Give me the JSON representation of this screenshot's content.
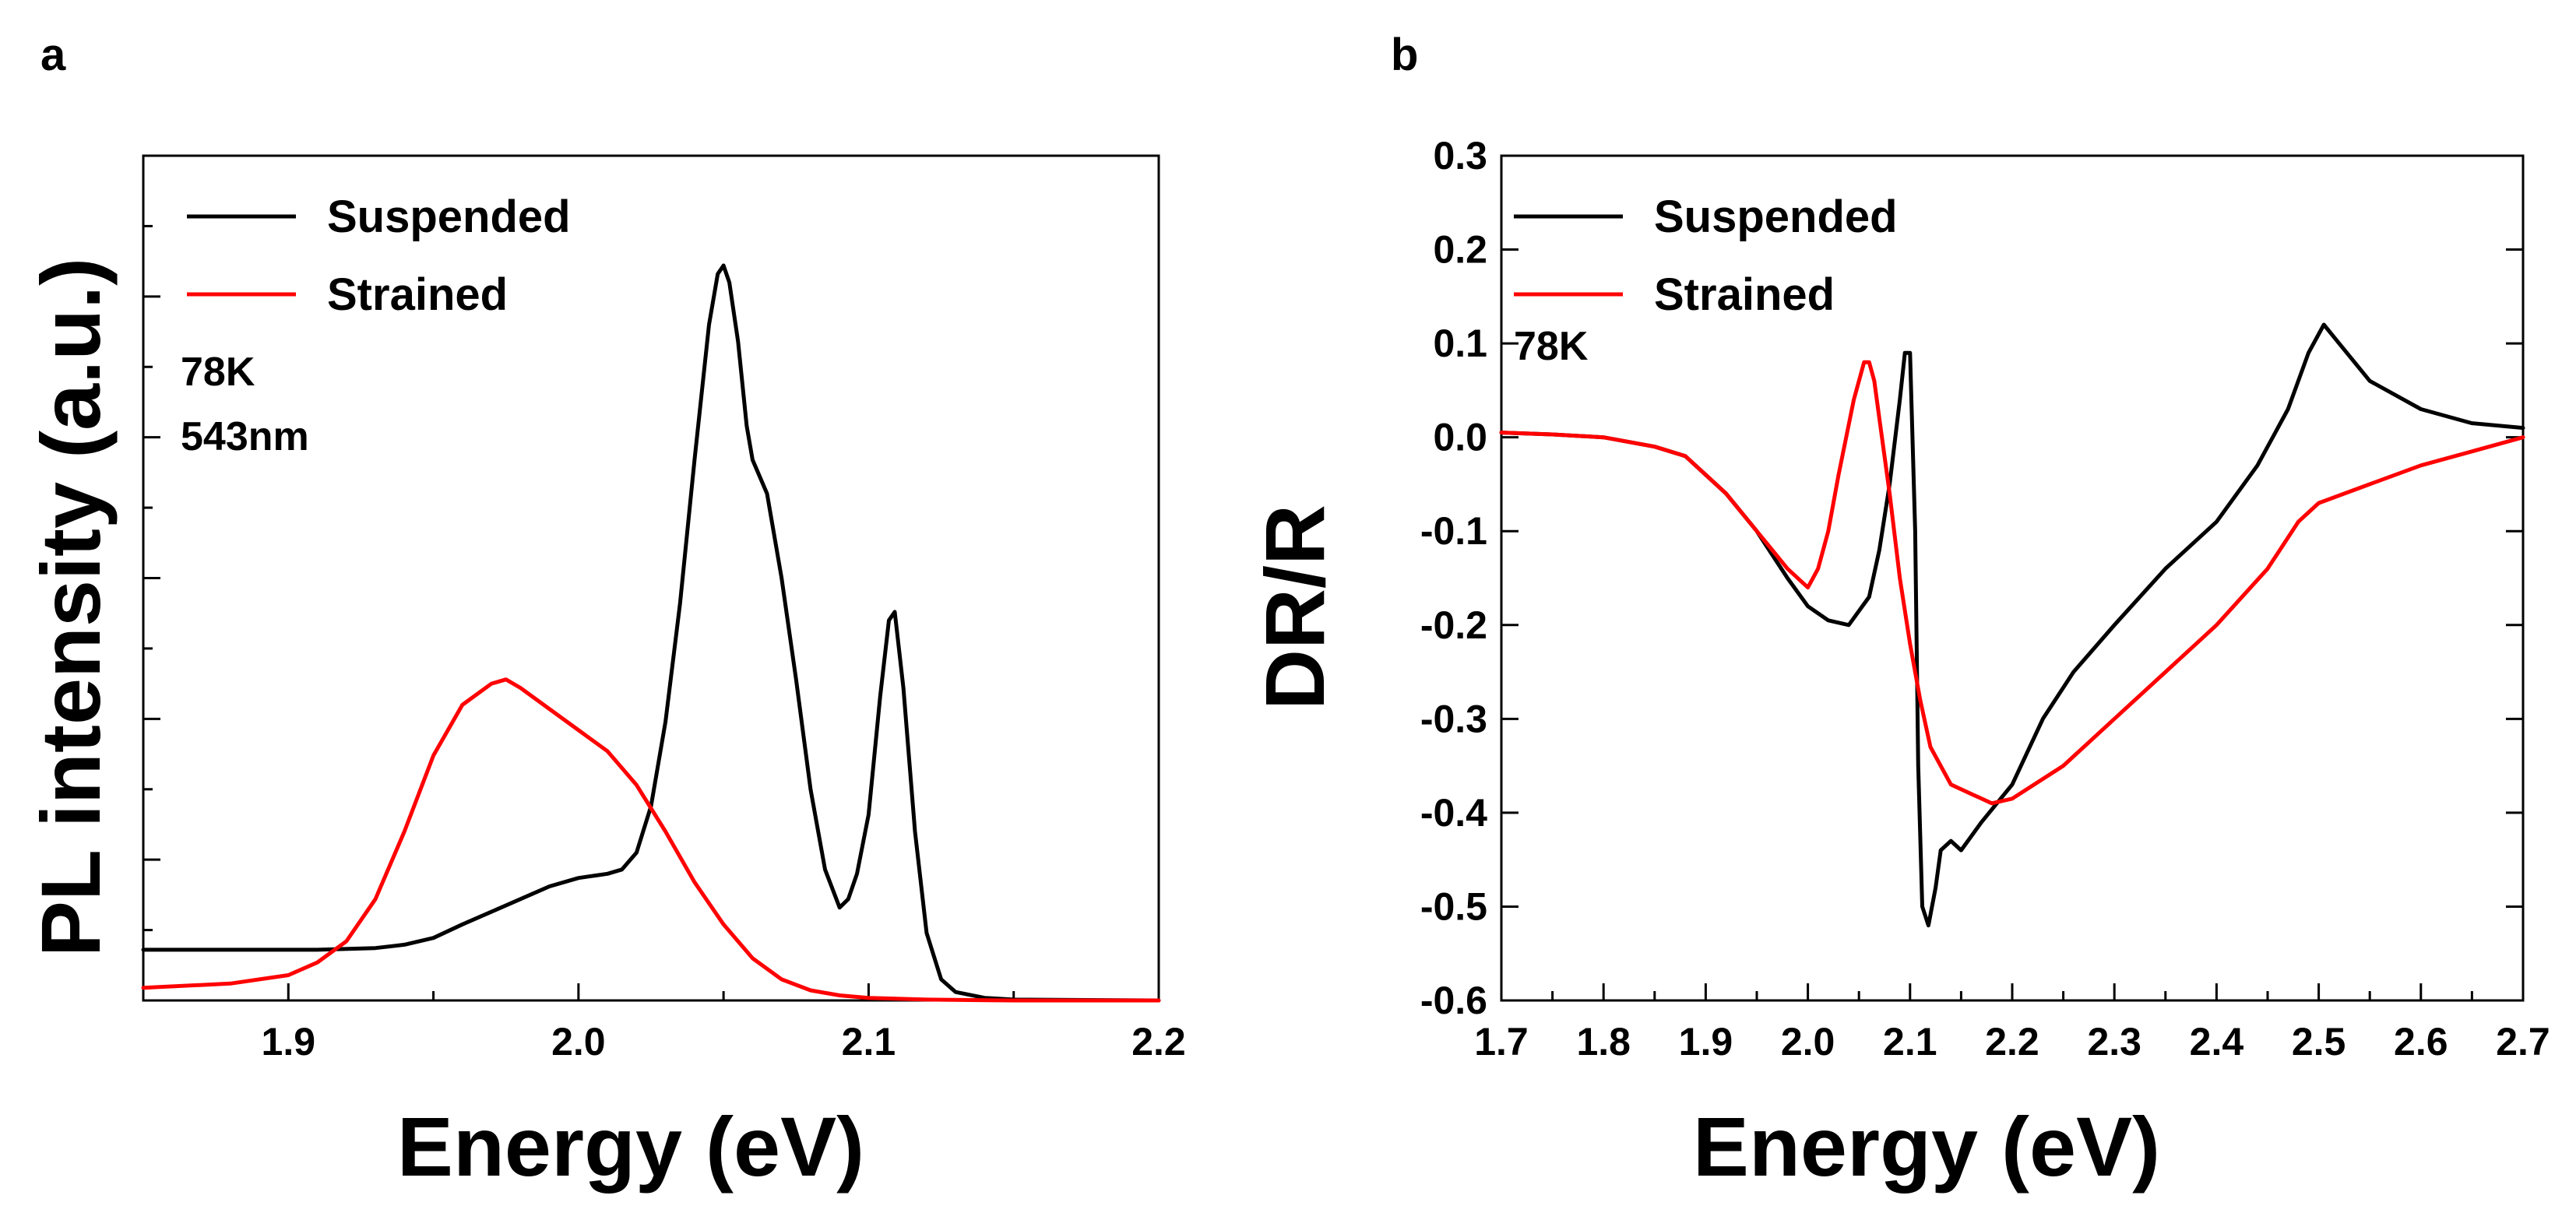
{
  "chart_data": [
    {
      "panel_label": "a",
      "type": "line",
      "title": "",
      "xlabel": "Energy (eV)",
      "ylabel": "PL intensity (a.u.)",
      "xlim": [
        1.85,
        2.2
      ],
      "ylim": [
        0,
        1.0
      ],
      "x_ticks": [
        1.9,
        2.0,
        2.1,
        2.2
      ],
      "x_tick_labels": [
        "1.9",
        "2.0",
        "2.1",
        "2.2"
      ],
      "y_tick_labels_shown": false,
      "legend": {
        "position": "top-left",
        "entries": [
          "Suspended",
          "Strained"
        ]
      },
      "annotations": [
        "78K",
        "543nm"
      ],
      "series": [
        {
          "name": "Suspended",
          "color": "#000000",
          "x": [
            1.85,
            1.88,
            1.91,
            1.93,
            1.94,
            1.95,
            1.96,
            1.97,
            1.98,
            1.99,
            2.0,
            2.01,
            2.015,
            2.02,
            2.025,
            2.03,
            2.035,
            2.04,
            2.045,
            2.048,
            2.05,
            2.052,
            2.055,
            2.058,
            2.06,
            2.065,
            2.07,
            2.075,
            2.08,
            2.085,
            2.09,
            2.093,
            2.096,
            2.1,
            2.104,
            2.107,
            2.109,
            2.112,
            2.116,
            2.12,
            2.125,
            2.13,
            2.14,
            2.15,
            2.2
          ],
          "y": [
            0.06,
            0.06,
            0.06,
            0.062,
            0.066,
            0.074,
            0.09,
            0.105,
            0.12,
            0.135,
            0.145,
            0.15,
            0.155,
            0.175,
            0.23,
            0.33,
            0.47,
            0.64,
            0.8,
            0.86,
            0.87,
            0.85,
            0.78,
            0.68,
            0.64,
            0.6,
            0.5,
            0.38,
            0.25,
            0.155,
            0.11,
            0.12,
            0.15,
            0.22,
            0.36,
            0.45,
            0.46,
            0.37,
            0.2,
            0.08,
            0.025,
            0.01,
            0.003,
            0.001,
            0.0
          ]
        },
        {
          "name": "Strained",
          "color": "#ff0000",
          "x": [
            1.85,
            1.88,
            1.9,
            1.91,
            1.92,
            1.93,
            1.94,
            1.95,
            1.96,
            1.97,
            1.975,
            1.98,
            1.99,
            2.0,
            2.01,
            2.02,
            2.03,
            2.04,
            2.05,
            2.06,
            2.07,
            2.08,
            2.09,
            2.1,
            2.12,
            2.15,
            2.2
          ],
          "y": [
            0.015,
            0.02,
            0.03,
            0.045,
            0.07,
            0.12,
            0.2,
            0.29,
            0.35,
            0.375,
            0.38,
            0.37,
            0.345,
            0.32,
            0.295,
            0.255,
            0.2,
            0.14,
            0.09,
            0.05,
            0.025,
            0.012,
            0.006,
            0.003,
            0.001,
            0.0,
            0.0
          ]
        }
      ]
    },
    {
      "panel_label": "b",
      "type": "line",
      "title": "",
      "xlabel": "Energy (eV)",
      "ylabel": "DR/R",
      "xlim": [
        1.7,
        2.7
      ],
      "ylim": [
        -0.6,
        0.3
      ],
      "x_ticks": [
        1.7,
        1.8,
        1.9,
        2.0,
        2.1,
        2.2,
        2.3,
        2.4,
        2.5,
        2.6,
        2.7
      ],
      "x_tick_labels": [
        "1.7",
        "1.8",
        "1.9",
        "2.0",
        "2.1",
        "2.2",
        "2.3",
        "2.4",
        "2.5",
        "2.6",
        "2.7"
      ],
      "y_ticks": [
        0.3,
        0.2,
        0.1,
        0.0,
        -0.1,
        -0.2,
        -0.3,
        -0.4,
        -0.5,
        -0.6
      ],
      "y_tick_labels": [
        "0.3",
        "0.2",
        "0.1",
        "0.0",
        "-0.1",
        "-0.2",
        "-0.3",
        "-0.4",
        "-0.5",
        "-0.6"
      ],
      "legend": {
        "position": "top-left",
        "entries": [
          "Suspended",
          "Strained"
        ]
      },
      "annotations": [
        "78K"
      ],
      "series": [
        {
          "name": "Suspended",
          "color": "#000000",
          "x": [
            1.7,
            1.75,
            1.8,
            1.85,
            1.88,
            1.9,
            1.92,
            1.95,
            1.98,
            2.0,
            2.02,
            2.04,
            2.06,
            2.07,
            2.08,
            2.09,
            2.095,
            2.1,
            2.105,
            2.108,
            2.112,
            2.118,
            2.125,
            2.13,
            2.14,
            2.15,
            2.17,
            2.2,
            2.23,
            2.26,
            2.3,
            2.35,
            2.4,
            2.44,
            2.47,
            2.49,
            2.505,
            2.52,
            2.55,
            2.6,
            2.65,
            2.7
          ],
          "y": [
            0.005,
            0.003,
            0.0,
            -0.01,
            -0.02,
            -0.04,
            -0.06,
            -0.1,
            -0.15,
            -0.18,
            -0.195,
            -0.2,
            -0.17,
            -0.12,
            -0.05,
            0.04,
            0.09,
            0.09,
            -0.1,
            -0.35,
            -0.5,
            -0.52,
            -0.48,
            -0.44,
            -0.43,
            -0.44,
            -0.41,
            -0.37,
            -0.3,
            -0.25,
            -0.2,
            -0.14,
            -0.09,
            -0.03,
            0.03,
            0.09,
            0.12,
            0.1,
            0.06,
            0.03,
            0.015,
            0.01
          ]
        },
        {
          "name": "Strained",
          "color": "#ff0000",
          "x": [
            1.7,
            1.75,
            1.8,
            1.85,
            1.88,
            1.9,
            1.92,
            1.95,
            1.98,
            2.0,
            2.01,
            2.02,
            2.03,
            2.045,
            2.055,
            2.06,
            2.065,
            2.07,
            2.08,
            2.09,
            2.1,
            2.11,
            2.12,
            2.14,
            2.16,
            2.18,
            2.2,
            2.25,
            2.3,
            2.35,
            2.4,
            2.45,
            2.48,
            2.5,
            2.55,
            2.6,
            2.65,
            2.7
          ],
          "y": [
            0.005,
            0.003,
            0.0,
            -0.01,
            -0.02,
            -0.04,
            -0.06,
            -0.1,
            -0.14,
            -0.16,
            -0.14,
            -0.1,
            -0.04,
            0.04,
            0.08,
            0.08,
            0.06,
            0.02,
            -0.06,
            -0.15,
            -0.22,
            -0.28,
            -0.33,
            -0.37,
            -0.38,
            -0.39,
            -0.385,
            -0.35,
            -0.3,
            -0.25,
            -0.2,
            -0.14,
            -0.09,
            -0.07,
            -0.05,
            -0.03,
            -0.015,
            0.0
          ]
        }
      ]
    }
  ]
}
